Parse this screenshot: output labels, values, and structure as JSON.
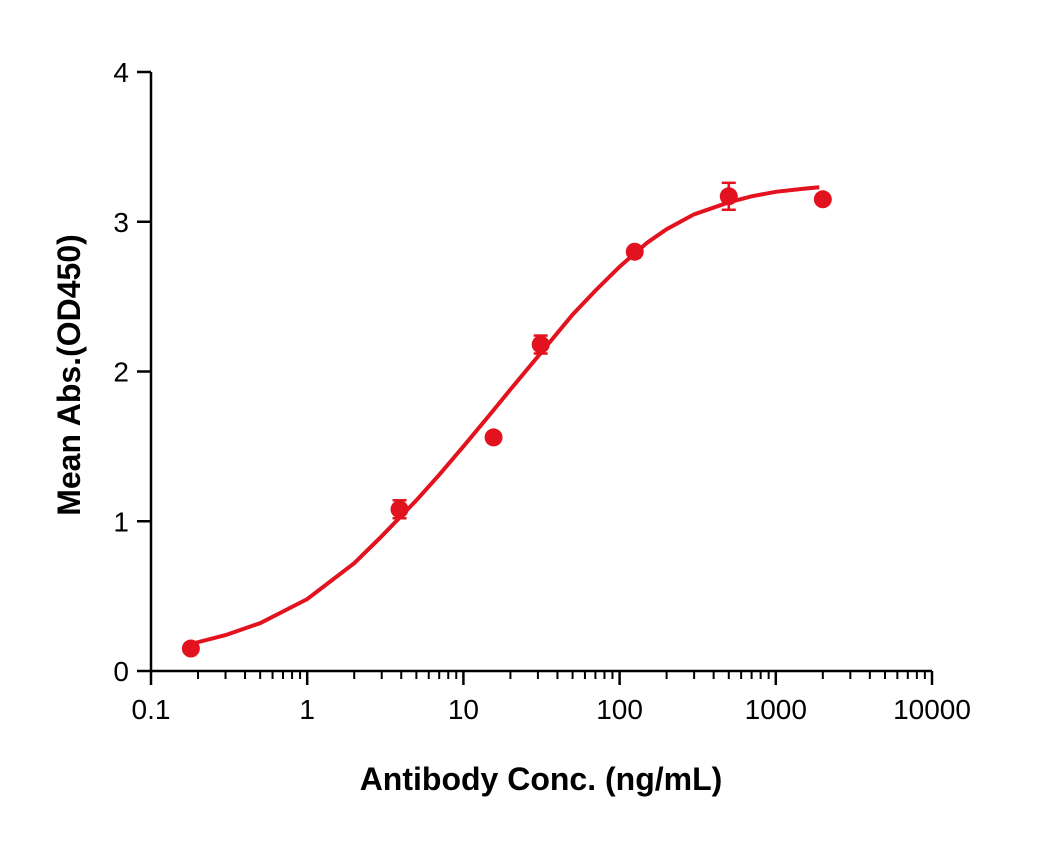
{
  "chart_data": {
    "type": "scatter",
    "title": "",
    "xlabel": "Antibody Conc. (ng/mL)",
    "ylabel": "Mean Abs.(OD450)",
    "xscale": "log",
    "xlim": [
      0.1,
      10000
    ],
    "ylim": [
      0,
      4
    ],
    "xticks": [
      "0.1",
      "1",
      "10",
      "100",
      "1000",
      "10000"
    ],
    "xtick_values": [
      0.1,
      1,
      10,
      100,
      1000,
      10000
    ],
    "yticks": [
      "0",
      "1",
      "2",
      "3",
      "4"
    ],
    "ytick_values": [
      0,
      1,
      2,
      3,
      4
    ],
    "grid": false,
    "color": "#e3121f",
    "points": {
      "x": [
        0.18,
        3.9,
        15.6,
        31.25,
        125,
        500,
        2000
      ],
      "y": [
        0.15,
        1.08,
        1.56,
        2.18,
        2.8,
        3.17,
        3.15
      ],
      "err": [
        0.0,
        0.06,
        0.0,
        0.06,
        0.0,
        0.09,
        0.0
      ]
    },
    "fit_curve": {
      "x": [
        0.18,
        0.3,
        0.5,
        1,
        2,
        3,
        5,
        7,
        10,
        15,
        20,
        30,
        50,
        70,
        100,
        150,
        200,
        300,
        500,
        700,
        1000,
        1500,
        1900
      ],
      "y": [
        0.18,
        0.24,
        0.32,
        0.48,
        0.72,
        0.9,
        1.14,
        1.31,
        1.5,
        1.72,
        1.88,
        2.1,
        2.38,
        2.54,
        2.7,
        2.86,
        2.95,
        3.05,
        3.13,
        3.17,
        3.2,
        3.22,
        3.23
      ]
    }
  }
}
